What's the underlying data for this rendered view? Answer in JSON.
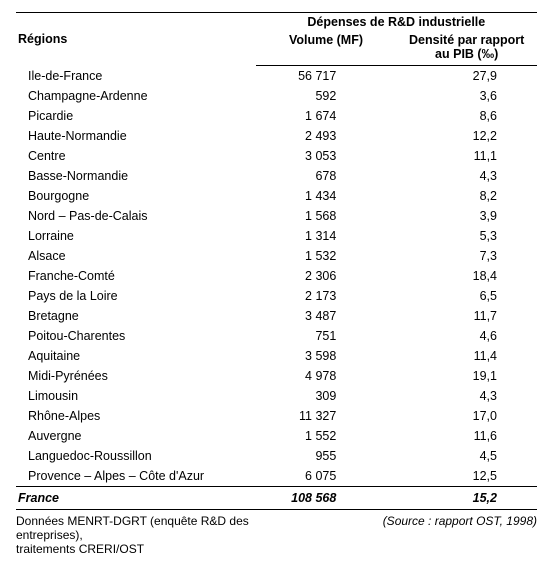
{
  "header": {
    "regions": "Régions",
    "group": "Dépenses de R&D industrielle",
    "volume": "Volume (MF)",
    "density_line1": "Densité par rapport",
    "density_line2": "au PIB (‰)"
  },
  "rows": [
    {
      "region": "Ile-de-France",
      "volume": "56 717",
      "density": "27,9"
    },
    {
      "region": "Champagne-Ardenne",
      "volume": "592",
      "density": "3,6"
    },
    {
      "region": "Picardie",
      "volume": "1 674",
      "density": "8,6"
    },
    {
      "region": "Haute-Normandie",
      "volume": "2 493",
      "density": "12,2"
    },
    {
      "region": "Centre",
      "volume": "3 053",
      "density": "11,1"
    },
    {
      "region": "Basse-Normandie",
      "volume": "678",
      "density": "4,3"
    },
    {
      "region": "Bourgogne",
      "volume": "1 434",
      "density": "8,2"
    },
    {
      "region": "Nord – Pas-de-Calais",
      "volume": "1 568",
      "density": "3,9"
    },
    {
      "region": "Lorraine",
      "volume": "1 314",
      "density": "5,3"
    },
    {
      "region": "Alsace",
      "volume": "1 532",
      "density": "7,3"
    },
    {
      "region": "Franche-Comté",
      "volume": "2 306",
      "density": "18,4"
    },
    {
      "region": "Pays de la Loire",
      "volume": "2 173",
      "density": "6,5"
    },
    {
      "region": "Bretagne",
      "volume": "3 487",
      "density": "11,7"
    },
    {
      "region": "Poitou-Charentes",
      "volume": "751",
      "density": "4,6"
    },
    {
      "region": "Aquitaine",
      "volume": "3 598",
      "density": "11,4"
    },
    {
      "region": "Midi-Pyrénées",
      "volume": "4 978",
      "density": "19,1"
    },
    {
      "region": "Limousin",
      "volume": "309",
      "density": "4,3"
    },
    {
      "region": "Rhône-Alpes",
      "volume": "11 327",
      "density": "17,0"
    },
    {
      "region": "Auvergne",
      "volume": "1 552",
      "density": "11,6"
    },
    {
      "region": "Languedoc-Roussillon",
      "volume": "955",
      "density": "4,5"
    },
    {
      "region": "Provence – Alpes – Côte d'Azur",
      "volume": "6 075",
      "density": "12,5"
    }
  ],
  "total": {
    "region": "France",
    "volume": "108 568",
    "density": "15,2"
  },
  "footer": {
    "left_line1": "Données MENRT-DGRT (enquête R&D des entreprises),",
    "left_line2": "traitements CRERI/OST",
    "right": "(Source : rapport OST, 1998)"
  },
  "col_widths": {
    "region": "46%",
    "volume": "27%",
    "density": "27%"
  }
}
